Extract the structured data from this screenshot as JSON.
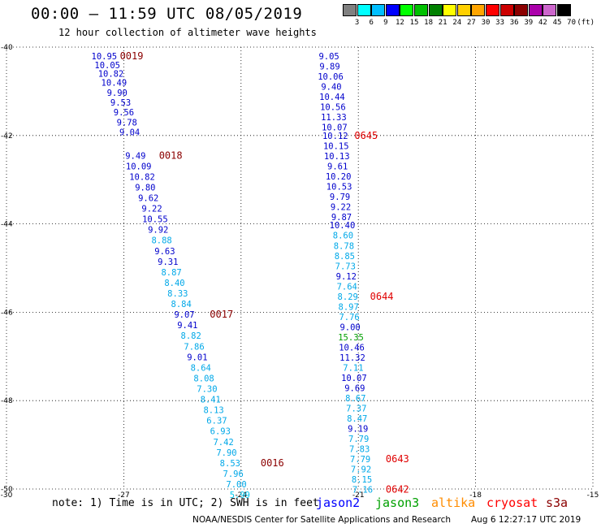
{
  "header": {
    "title": "00:00 – 11:59 UTC 08/05/2019",
    "subtitle": "12 hour collection of altimeter wave heights"
  },
  "colorbar": {
    "labels": [
      "3",
      "6",
      "9",
      "12",
      "15",
      "18",
      "21",
      "24",
      "27",
      "30",
      "33",
      "36",
      "39",
      "42",
      "45",
      "70",
      "(ft)"
    ],
    "colors": [
      "#808080",
      "#00ffff",
      "#00bfff",
      "#0000ff",
      "#00ff00",
      "#00c000",
      "#008000",
      "#ffff00",
      "#ffd000",
      "#ffa500",
      "#ff0000",
      "#cc0000",
      "#8b0000",
      "#aa00aa",
      "#cc66cc",
      "#000000"
    ]
  },
  "note": "note: 1) Time is in UTC; 2) SWH is in feet",
  "satellites": [
    {
      "name": "jason2",
      "color": "#0000ff"
    },
    {
      "name": "jason3",
      "color": "#00a000"
    },
    {
      "name": "altika",
      "color": "#ff8c00"
    },
    {
      "name": "cryosat",
      "color": "#ff0000"
    },
    {
      "name": "s3a",
      "color": "#8b0000"
    }
  ],
  "footer": {
    "credit": "NOAA/NESDIS Center for Satellite Applications and Research",
    "timestamp": "Aug  6 12:27:17 UTC 2019"
  },
  "chart_data": {
    "type": "scatter",
    "xlim": [
      -30,
      -15
    ],
    "ylim": [
      -50,
      -40
    ],
    "x_ticks": [
      "-30",
      "-27",
      "-24",
      "-21",
      "-18",
      "-15"
    ],
    "y_ticks": [
      "-40",
      "-42",
      "-44",
      "-46",
      "-48",
      "-50"
    ],
    "grid": true,
    "series": [
      {
        "points": [
          {
            "lat": -40.2,
            "lon": -27.5,
            "v": "10.95"
          },
          {
            "lat": -40.4,
            "lon": -27.42,
            "v": "10.05"
          },
          {
            "lat": -40.6,
            "lon": -27.33,
            "v": "10.82"
          },
          {
            "lat": -40.8,
            "lon": -27.25,
            "v": "10.49"
          },
          {
            "lat": -41.03,
            "lon": -27.17,
            "v": "9.90"
          },
          {
            "lat": -41.25,
            "lon": -27.08,
            "v": "9.53"
          },
          {
            "lat": -41.47,
            "lon": -27.0,
            "v": "9.56"
          },
          {
            "lat": -41.7,
            "lon": -26.92,
            "v": "9.78"
          },
          {
            "lat": -41.92,
            "lon": -26.85,
            "v": "9.04"
          },
          {
            "lat": -42.45,
            "lon": -26.7,
            "v": "9.49"
          },
          {
            "lat": -42.69,
            "lon": -26.62,
            "v": "10.09"
          },
          {
            "lat": -42.93,
            "lon": -26.53,
            "v": "10.82"
          },
          {
            "lat": -43.17,
            "lon": -26.45,
            "v": "9.80"
          },
          {
            "lat": -43.41,
            "lon": -26.37,
            "v": "9.62"
          },
          {
            "lat": -43.65,
            "lon": -26.28,
            "v": "9.22"
          },
          {
            "lat": -43.89,
            "lon": -26.2,
            "v": "10.55"
          },
          {
            "lat": -44.13,
            "lon": -26.12,
            "v": "9.92"
          },
          {
            "lat": -44.37,
            "lon": -26.03,
            "v": "8.88"
          },
          {
            "lat": -44.61,
            "lon": -25.95,
            "v": "9.63"
          },
          {
            "lat": -44.85,
            "lon": -25.87,
            "v": "9.31"
          },
          {
            "lat": -45.09,
            "lon": -25.78,
            "v": "8.87"
          },
          {
            "lat": -45.33,
            "lon": -25.7,
            "v": "8.40"
          },
          {
            "lat": -45.57,
            "lon": -25.62,
            "v": "8.33"
          },
          {
            "lat": -45.81,
            "lon": -25.53,
            "v": "8.84"
          },
          {
            "lat": -46.05,
            "lon": -25.45,
            "v": "9.07"
          },
          {
            "lat": -46.29,
            "lon": -25.37,
            "v": "9.41"
          },
          {
            "lat": -46.53,
            "lon": -25.28,
            "v": "8.82"
          },
          {
            "lat": -46.77,
            "lon": -25.2,
            "v": "7.86"
          },
          {
            "lat": -47.01,
            "lon": -25.12,
            "v": "9.01"
          },
          {
            "lat": -47.25,
            "lon": -25.03,
            "v": "8.64"
          },
          {
            "lat": -47.49,
            "lon": -24.95,
            "v": "8.08"
          },
          {
            "lat": -47.73,
            "lon": -24.87,
            "v": "7.30"
          },
          {
            "lat": -47.97,
            "lon": -24.78,
            "v": "8.41"
          },
          {
            "lat": -48.21,
            "lon": -24.7,
            "v": "8.13"
          },
          {
            "lat": -48.45,
            "lon": -24.62,
            "v": "6.37"
          },
          {
            "lat": -48.69,
            "lon": -24.53,
            "v": "6.93"
          },
          {
            "lat": -48.93,
            "lon": -24.45,
            "v": "7.42"
          },
          {
            "lat": -49.17,
            "lon": -24.37,
            "v": "7.90"
          },
          {
            "lat": -49.41,
            "lon": -24.28,
            "v": "8.53"
          },
          {
            "lat": -49.65,
            "lon": -24.2,
            "v": "7.96"
          },
          {
            "lat": -49.89,
            "lon": -24.12,
            "v": "7.00"
          },
          {
            "lat": -50.13,
            "lon": -24.03,
            "v": "5.99"
          }
        ],
        "time_tags": [
          {
            "lat": -40.2,
            "lon": -26.8,
            "t": "0019"
          },
          {
            "lat": -42.45,
            "lon": -25.8,
            "t": "0018"
          },
          {
            "lat": -46.05,
            "lon": -24.5,
            "t": "0017"
          },
          {
            "lat": -49.41,
            "lon": -23.2,
            "t": "0016"
          }
        ]
      },
      {
        "points": [
          {
            "lat": -40.2,
            "lon": -21.75,
            "v": "9.05"
          },
          {
            "lat": -40.43,
            "lon": -21.73,
            "v": "9.89"
          },
          {
            "lat": -40.66,
            "lon": -21.71,
            "v": "10.06"
          },
          {
            "lat": -40.89,
            "lon": -21.69,
            "v": "9.40"
          },
          {
            "lat": -41.12,
            "lon": -21.67,
            "v": "10.44"
          },
          {
            "lat": -41.35,
            "lon": -21.65,
            "v": "10.56"
          },
          {
            "lat": -41.58,
            "lon": -21.63,
            "v": "11.33"
          },
          {
            "lat": -41.81,
            "lon": -21.61,
            "v": "10.07"
          },
          {
            "lat": -42.0,
            "lon": -21.59,
            "v": "10.12"
          },
          {
            "lat": -42.23,
            "lon": -21.57,
            "v": "10.15"
          },
          {
            "lat": -42.46,
            "lon": -21.55,
            "v": "10.13"
          },
          {
            "lat": -42.69,
            "lon": -21.53,
            "v": "9.61"
          },
          {
            "lat": -42.92,
            "lon": -21.51,
            "v": "10.20"
          },
          {
            "lat": -43.15,
            "lon": -21.49,
            "v": "10.53"
          },
          {
            "lat": -43.38,
            "lon": -21.47,
            "v": "9.79"
          },
          {
            "lat": -43.61,
            "lon": -21.45,
            "v": "9.22"
          },
          {
            "lat": -43.84,
            "lon": -21.43,
            "v": "9.87"
          },
          {
            "lat": -44.03,
            "lon": -21.41,
            "v": "10.40"
          },
          {
            "lat": -44.26,
            "lon": -21.39,
            "v": "8.60"
          },
          {
            "lat": -44.49,
            "lon": -21.37,
            "v": "8.78"
          },
          {
            "lat": -44.72,
            "lon": -21.35,
            "v": "8.85"
          },
          {
            "lat": -44.95,
            "lon": -21.33,
            "v": "7.73"
          },
          {
            "lat": -45.18,
            "lon": -21.31,
            "v": "9.12"
          },
          {
            "lat": -45.41,
            "lon": -21.29,
            "v": "7.64"
          },
          {
            "lat": -45.64,
            "lon": -21.27,
            "v": "8.29"
          },
          {
            "lat": -45.87,
            "lon": -21.25,
            "v": "8.97"
          },
          {
            "lat": -46.1,
            "lon": -21.23,
            "v": "7.76"
          },
          {
            "lat": -46.33,
            "lon": -21.21,
            "v": "9.00"
          },
          {
            "lat": -46.56,
            "lon": -21.19,
            "v": "15.35"
          },
          {
            "lat": -46.79,
            "lon": -21.17,
            "v": "10.46"
          },
          {
            "lat": -47.02,
            "lon": -21.15,
            "v": "11.32"
          },
          {
            "lat": -47.25,
            "lon": -21.13,
            "v": "7.11"
          },
          {
            "lat": -47.48,
            "lon": -21.11,
            "v": "10.07"
          },
          {
            "lat": -47.71,
            "lon": -21.09,
            "v": "9.69"
          },
          {
            "lat": -47.94,
            "lon": -21.07,
            "v": "8.67"
          },
          {
            "lat": -48.17,
            "lon": -21.05,
            "v": "7.37"
          },
          {
            "lat": -48.4,
            "lon": -21.03,
            "v": "8.47"
          },
          {
            "lat": -48.63,
            "lon": -21.01,
            "v": "9.19"
          },
          {
            "lat": -48.86,
            "lon": -20.99,
            "v": "7.79"
          },
          {
            "lat": -49.09,
            "lon": -20.97,
            "v": "7.83"
          },
          {
            "lat": -49.32,
            "lon": -20.95,
            "v": "7.79"
          },
          {
            "lat": -49.55,
            "lon": -20.93,
            "v": "7.92"
          },
          {
            "lat": -49.78,
            "lon": -20.91,
            "v": "8.15"
          },
          {
            "lat": -50.01,
            "lon": -20.89,
            "v": "7.16"
          }
        ],
        "time_tags": [
          {
            "lat": -42.0,
            "lon": -20.8,
            "t": "0645"
          },
          {
            "lat": -45.64,
            "lon": -20.4,
            "t": "0644"
          },
          {
            "lat": -49.32,
            "lon": -20.0,
            "t": "0643"
          },
          {
            "lat": -50.01,
            "lon": -20.0,
            "t": "0642"
          }
        ]
      }
    ]
  }
}
